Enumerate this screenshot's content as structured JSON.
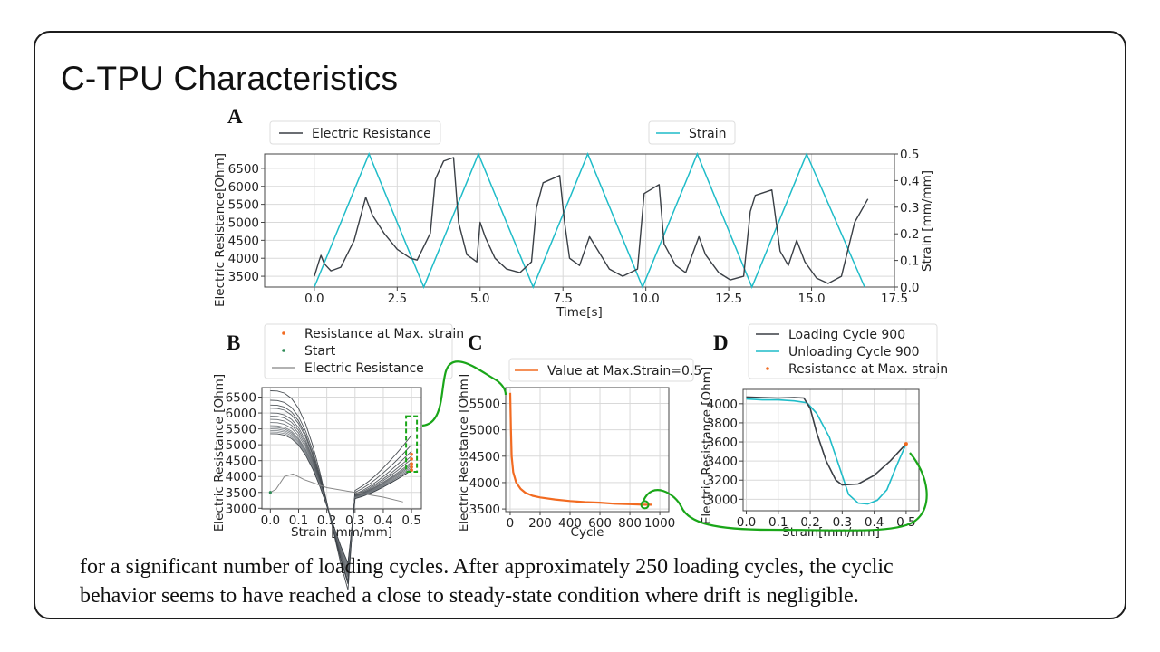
{
  "slide": {
    "title": "C-TPU Characteristics",
    "caption_lines": [
      "for a significant number of loading cycles.  After approximately 250 loading cycles, the cyclic",
      "behavior seems to have reached a close to steady-state condition where drift is negligible."
    ]
  },
  "colors": {
    "resistance": "#3a3f45",
    "strain": "#1fbcc8",
    "orange": "#f26b21",
    "green_annotation": "#1aa619",
    "grid": "#d9d9d9"
  },
  "chart_data": [
    {
      "panel": "A",
      "type": "line",
      "xlabel": "Time[s]",
      "ylabel": "Electric Resistance[Ohm]",
      "ylabel_right": "Strain [mm/mm]",
      "xlim": [
        -1.5,
        17.5
      ],
      "ylim": [
        3200,
        6900
      ],
      "ylim_right": [
        0,
        0.5
      ],
      "xticks": [
        0.0,
        2.5,
        5.0,
        7.5,
        10.0,
        12.5,
        15.0,
        17.5
      ],
      "xtick_labels": [
        "0.0",
        "2.5",
        "5.0",
        "7.5",
        "10.0",
        "12.5",
        "15.0",
        "17.5"
      ],
      "yticks": [
        3500,
        4000,
        4500,
        5000,
        5500,
        6000,
        6500
      ],
      "ytick_labels": [
        "3500",
        "4000",
        "4500",
        "5000",
        "5500",
        "6000",
        "6500"
      ],
      "yticks_right": [
        0.0,
        0.1,
        0.2,
        0.3,
        0.4,
        0.5
      ],
      "ytick_right_labels": [
        "0.0",
        "0.1",
        "0.2",
        "0.3",
        "0.4",
        "0.5"
      ],
      "legend": [
        "Electric Resistance",
        "Strain"
      ],
      "grid": true,
      "series": [
        {
          "name": "Electric Resistance",
          "axis": "left",
          "points": [
            [
              0.0,
              3500
            ],
            [
              0.15,
              3950
            ],
            [
              0.2,
              4080
            ],
            [
              0.3,
              3850
            ],
            [
              0.5,
              3650
            ],
            [
              0.8,
              3750
            ],
            [
              1.2,
              4500
            ],
            [
              1.55,
              5700
            ],
            [
              1.75,
              5200
            ],
            [
              2.1,
              4700
            ],
            [
              2.5,
              4250
            ],
            [
              2.9,
              4000
            ],
            [
              3.1,
              3950
            ],
            [
              3.5,
              4700
            ],
            [
              3.65,
              6200
            ],
            [
              3.9,
              6700
            ],
            [
              4.2,
              6800
            ],
            [
              4.35,
              5000
            ],
            [
              4.6,
              4100
            ],
            [
              4.9,
              3900
            ],
            [
              5.0,
              5000
            ],
            [
              5.15,
              4600
            ],
            [
              5.45,
              4000
            ],
            [
              5.8,
              3700
            ],
            [
              6.2,
              3600
            ],
            [
              6.55,
              3900
            ],
            [
              6.7,
              5400
            ],
            [
              6.9,
              6100
            ],
            [
              7.4,
              6300
            ],
            [
              7.55,
              5000
            ],
            [
              7.7,
              4000
            ],
            [
              8.0,
              3800
            ],
            [
              8.3,
              4600
            ],
            [
              8.5,
              4300
            ],
            [
              8.9,
              3700
            ],
            [
              9.3,
              3500
            ],
            [
              9.75,
              3700
            ],
            [
              9.95,
              5800
            ],
            [
              10.4,
              6050
            ],
            [
              10.55,
              4400
            ],
            [
              10.9,
              3800
            ],
            [
              11.2,
              3600
            ],
            [
              11.6,
              4600
            ],
            [
              11.8,
              4100
            ],
            [
              12.2,
              3600
            ],
            [
              12.55,
              3400
            ],
            [
              12.95,
              3500
            ],
            [
              13.15,
              5300
            ],
            [
              13.3,
              5750
            ],
            [
              13.8,
              5900
            ],
            [
              14.05,
              4200
            ],
            [
              14.3,
              3800
            ],
            [
              14.55,
              4500
            ],
            [
              14.8,
              3900
            ],
            [
              15.15,
              3450
            ],
            [
              15.5,
              3300
            ],
            [
              15.9,
              3500
            ],
            [
              16.3,
              5000
            ],
            [
              16.7,
              5650
            ]
          ]
        },
        {
          "name": "Strain",
          "axis": "right",
          "points": [
            [
              0.0,
              0.0
            ],
            [
              1.65,
              0.5
            ],
            [
              3.3,
              0.0
            ],
            [
              4.95,
              0.5
            ],
            [
              6.6,
              0.0
            ],
            [
              8.25,
              0.5
            ],
            [
              9.9,
              0.0
            ],
            [
              11.55,
              0.5
            ],
            [
              13.2,
              0.0
            ],
            [
              14.85,
              0.5
            ],
            [
              16.6,
              0.0
            ]
          ]
        }
      ]
    },
    {
      "panel": "B",
      "type": "line",
      "xlabel": "Strain [mm/mm]",
      "ylabel": "Electric Resistance [Ohm]",
      "xlim": [
        -0.03,
        0.535
      ],
      "ylim": [
        2980,
        6800
      ],
      "xticks": [
        0.0,
        0.1,
        0.2,
        0.3,
        0.4,
        0.5
      ],
      "xtick_labels": [
        "0.0",
        "0.1",
        "0.2",
        "0.3",
        "0.4",
        "0.5"
      ],
      "yticks": [
        3000,
        3500,
        4000,
        4500,
        5000,
        5500,
        6000,
        6500
      ],
      "ytick_labels": [
        "3000",
        "3500",
        "4000",
        "4500",
        "5000",
        "5500",
        "6000",
        "6500"
      ],
      "legend": [
        "Resistance at Max. strain",
        "Start",
        "Electric Resistance"
      ],
      "grid": true,
      "curve_family": {
        "name": "Electric Resistance",
        "start_values_at_0": [
          6700,
          6400,
          6250,
          6150,
          6000,
          5900,
          5800,
          5700,
          5600,
          5550,
          5500,
          5450,
          5400,
          5350
        ],
        "min_values_near_0_3": [
          3500,
          3450,
          3400,
          3380,
          3360,
          3350,
          3340,
          3330,
          3320,
          3310,
          3300,
          3290,
          3280,
          3270
        ],
        "end_values_at_0_5": [
          5300,
          5000,
          4800,
          4650,
          4550,
          4450,
          4400,
          4350,
          4300,
          4250,
          4250,
          4200,
          4200,
          4200
        ]
      },
      "first_cycle": [
        [
          0.0,
          3500
        ],
        [
          0.02,
          3600
        ],
        [
          0.05,
          4000
        ],
        [
          0.08,
          4080
        ],
        [
          0.12,
          3900
        ],
        [
          0.2,
          3650
        ],
        [
          0.3,
          3500
        ],
        [
          0.4,
          3350
        ],
        [
          0.47,
          3200
        ]
      ],
      "max_strain_points": [
        [
          0.5,
          4200
        ],
        [
          0.5,
          4300
        ],
        [
          0.5,
          4400
        ],
        [
          0.5,
          4550
        ],
        [
          0.5,
          4700
        ]
      ]
    },
    {
      "panel": "C",
      "type": "line",
      "xlabel": "Cycle",
      "ylabel": "Electric Resistance [Ohm]",
      "xlim": [
        -30,
        1060
      ],
      "ylim": [
        3450,
        5800
      ],
      "xticks": [
        0,
        200,
        400,
        600,
        800,
        1000
      ],
      "xtick_labels": [
        "0",
        "200",
        "400",
        "600",
        "800",
        "1000"
      ],
      "yticks": [
        3500,
        4000,
        4500,
        5000,
        5500
      ],
      "ytick_labels": [
        "3500",
        "4000",
        "4500",
        "5000",
        "5500"
      ],
      "legend": [
        "Value at Max.Strain=0.5"
      ],
      "grid": true,
      "series": [
        {
          "name": "Value at Max.Strain=0.5",
          "points": [
            [
              0,
              5700
            ],
            [
              5,
              5000
            ],
            [
              10,
              4500
            ],
            [
              20,
              4200
            ],
            [
              40,
              4000
            ],
            [
              70,
              3880
            ],
            [
              100,
              3810
            ],
            [
              150,
              3750
            ],
            [
              200,
              3720
            ],
            [
              300,
              3680
            ],
            [
              400,
              3650
            ],
            [
              500,
              3630
            ],
            [
              600,
              3620
            ],
            [
              700,
              3600
            ],
            [
              800,
              3590
            ],
            [
              900,
              3580
            ],
            [
              950,
              3580
            ]
          ]
        }
      ],
      "highlight_point": [
        900,
        3580
      ]
    },
    {
      "panel": "D",
      "type": "line",
      "xlabel": "Strain[mm/mm]",
      "ylabel": "Electric Resistance [Ohm]",
      "xlim": [
        -0.01,
        0.54
      ],
      "ylim": [
        2880,
        4150
      ],
      "xticks": [
        0.0,
        0.1,
        0.2,
        0.3,
        0.4,
        0.5
      ],
      "xtick_labels": [
        "0.0",
        "0.1",
        "0.2",
        "0.3",
        "0.4",
        "0.5"
      ],
      "yticks": [
        3000,
        3200,
        3400,
        3600,
        3800,
        4000
      ],
      "ytick_labels": [
        "3000",
        "3200",
        "3400",
        "3600",
        "3800",
        "4000"
      ],
      "legend": [
        "Loading Cycle 900",
        "Unloading Cycle 900",
        "Resistance at Max. strain"
      ],
      "grid": true,
      "series": [
        {
          "name": "Loading Cycle 900",
          "points": [
            [
              0.0,
              4070
            ],
            [
              0.05,
              4065
            ],
            [
              0.1,
              4060
            ],
            [
              0.15,
              4065
            ],
            [
              0.18,
              4060
            ],
            [
              0.2,
              3950
            ],
            [
              0.22,
              3700
            ],
            [
              0.25,
              3400
            ],
            [
              0.28,
              3200
            ],
            [
              0.3,
              3150
            ],
            [
              0.35,
              3160
            ],
            [
              0.4,
              3250
            ],
            [
              0.45,
              3400
            ],
            [
              0.5,
              3580
            ]
          ]
        },
        {
          "name": "Unloading Cycle 900",
          "points": [
            [
              0.5,
              3580
            ],
            [
              0.47,
              3350
            ],
            [
              0.44,
              3100
            ],
            [
              0.41,
              2990
            ],
            [
              0.38,
              2950
            ],
            [
              0.35,
              2960
            ],
            [
              0.32,
              3050
            ],
            [
              0.29,
              3350
            ],
            [
              0.26,
              3650
            ],
            [
              0.22,
              3900
            ],
            [
              0.19,
              4010
            ],
            [
              0.15,
              4030
            ],
            [
              0.1,
              4040
            ],
            [
              0.05,
              4040
            ],
            [
              0.0,
              4050
            ]
          ]
        }
      ],
      "max_strain_point": [
        0.5,
        3580
      ]
    }
  ]
}
